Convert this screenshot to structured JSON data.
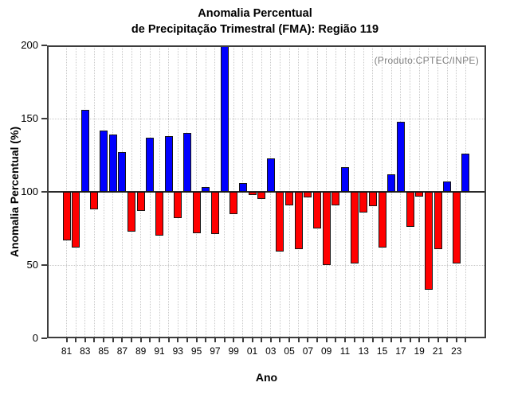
{
  "title": {
    "line1": "Anomalia Percentual",
    "line2": "de Precipitação Trimestral (FMA): Região 119"
  },
  "annotation": "(Produto:CPTEC/INPE)",
  "axes": {
    "y_label": "Anomalia Percentual (%)",
    "x_label": "Ano",
    "y_ticks": [
      0,
      50,
      100,
      150,
      200
    ],
    "x_tick_labels": [
      "81",
      "83",
      "85",
      "87",
      "89",
      "91",
      "93",
      "95",
      "97",
      "99",
      "01",
      "03",
      "05",
      "07",
      "09",
      "11",
      "13",
      "15",
      "17",
      "19",
      "21",
      "23"
    ]
  },
  "colors": {
    "bar_above_baseline": "#0000ff",
    "bar_below_baseline": "#ff0000",
    "frame": "#3d3d3d",
    "grid": "#c9c9c9",
    "baseline": "#2a2a2a",
    "annotation_text": "#7f7f7f"
  },
  "chart_data": {
    "type": "bar",
    "title": "Anomalia Percentual de Precipitação Trimestral (FMA): Região 119",
    "xlabel": "Ano",
    "ylabel": "Anomalia Percentual (%)",
    "ylim": [
      0,
      200
    ],
    "baseline": 100,
    "grid": true,
    "grid_y": [
      50,
      150
    ],
    "legend": null,
    "x": [
      1981,
      1982,
      1983,
      1984,
      1985,
      1986,
      1987,
      1988,
      1989,
      1990,
      1991,
      1992,
      1993,
      1994,
      1995,
      1996,
      1997,
      1998,
      1999,
      2000,
      2001,
      2002,
      2003,
      2004,
      2005,
      2006,
      2007,
      2008,
      2009,
      2010,
      2011,
      2012,
      2013,
      2014,
      2015,
      2016,
      2017,
      2018,
      2019,
      2020,
      2021,
      2022,
      2023,
      2024
    ],
    "values": [
      67,
      62,
      156,
      88,
      142,
      139,
      127,
      73,
      87,
      137,
      70,
      138,
      82,
      140,
      72,
      103,
      71,
      200,
      85,
      106,
      98,
      95,
      123,
      59,
      91,
      61,
      96,
      75,
      50,
      91,
      117,
      51,
      86,
      90,
      62,
      112,
      148,
      76,
      97,
      33,
      61,
      107,
      51,
      126
    ],
    "note": "1998 bar is clipped at the top of the plot (value >= 200); bars above 100 are blue, below 100 are red"
  }
}
